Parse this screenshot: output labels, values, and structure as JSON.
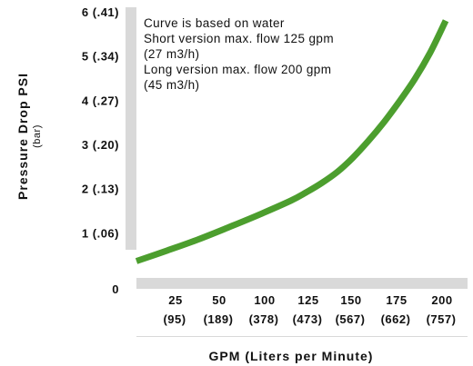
{
  "chart_data": {
    "type": "line",
    "title": "",
    "ylabel": "Pressure Drop PSI",
    "ylabel_sub": "(bar)",
    "xlabel": "GPM (Liters per Minute)",
    "xlim": [
      0,
      200
    ],
    "ylim": [
      0,
      6
    ],
    "grid": false,
    "x_ticks": [
      {
        "gpm": "25",
        "lpm": "(95)"
      },
      {
        "gpm": "50",
        "lpm": "(189)"
      },
      {
        "gpm": "100",
        "lpm": "(378)"
      },
      {
        "gpm": "125",
        "lpm": "(473)"
      },
      {
        "gpm": "150",
        "lpm": "(567)"
      },
      {
        "gpm": "175",
        "lpm": "(662)"
      },
      {
        "gpm": "200",
        "lpm": "(757)"
      }
    ],
    "y_ticks": [
      {
        "value": 0,
        "label": "0"
      },
      {
        "value": 1,
        "label": "1 (.06)"
      },
      {
        "value": 2,
        "label": "2 (.13)"
      },
      {
        "value": 3,
        "label": "3 (.20)"
      },
      {
        "value": 4,
        "label": "4 (.27)"
      },
      {
        "value": 5,
        "label": "5 (.34)"
      },
      {
        "value": 6,
        "label": "6 (.41)"
      }
    ],
    "annotations": [
      "Curve is based on water",
      "Short version max. flow 125 gpm",
      "(27 m3/h)",
      "Long version max. flow 200 gpm",
      "(45 m3/h)"
    ],
    "series": [
      {
        "color": "#4c9e2e",
        "points": [
          [
            0,
            0.36
          ],
          [
            20,
            0.6
          ],
          [
            40,
            0.85
          ],
          [
            60,
            1.13
          ],
          [
            80,
            1.42
          ],
          [
            100,
            1.73
          ],
          [
            110,
            1.92
          ],
          [
            120,
            2.13
          ],
          [
            130,
            2.38
          ],
          [
            140,
            2.7
          ],
          [
            150,
            3.08
          ],
          [
            160,
            3.5
          ],
          [
            170,
            3.97
          ],
          [
            180,
            4.48
          ],
          [
            190,
            5.08
          ],
          [
            200,
            5.8
          ]
        ]
      }
    ]
  }
}
